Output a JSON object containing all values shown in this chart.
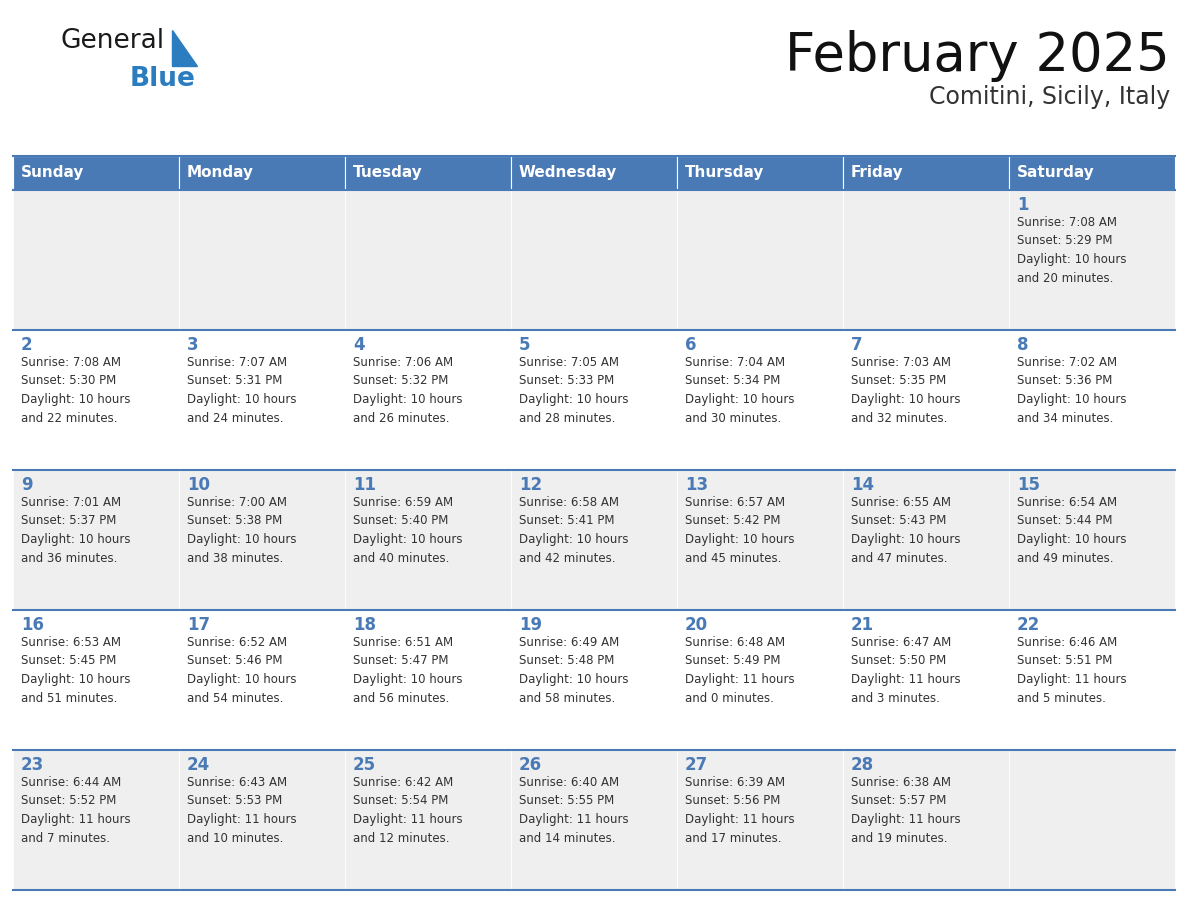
{
  "title": "February 2025",
  "subtitle": "Comitini, Sicily, Italy",
  "header_color": "#4a7ab5",
  "header_text_color": "#ffffff",
  "cell_bg_odd": "#efefef",
  "cell_bg_even": "#ffffff",
  "border_color": "#4a7ab5",
  "day_num_color": "#4a7ab5",
  "text_color": "#333333",
  "days_of_week": [
    "Sunday",
    "Monday",
    "Tuesday",
    "Wednesday",
    "Thursday",
    "Friday",
    "Saturday"
  ],
  "weeks": [
    [
      {
        "day": "",
        "info": ""
      },
      {
        "day": "",
        "info": ""
      },
      {
        "day": "",
        "info": ""
      },
      {
        "day": "",
        "info": ""
      },
      {
        "day": "",
        "info": ""
      },
      {
        "day": "",
        "info": ""
      },
      {
        "day": "1",
        "info": "Sunrise: 7:08 AM\nSunset: 5:29 PM\nDaylight: 10 hours\nand 20 minutes."
      }
    ],
    [
      {
        "day": "2",
        "info": "Sunrise: 7:08 AM\nSunset: 5:30 PM\nDaylight: 10 hours\nand 22 minutes."
      },
      {
        "day": "3",
        "info": "Sunrise: 7:07 AM\nSunset: 5:31 PM\nDaylight: 10 hours\nand 24 minutes."
      },
      {
        "day": "4",
        "info": "Sunrise: 7:06 AM\nSunset: 5:32 PM\nDaylight: 10 hours\nand 26 minutes."
      },
      {
        "day": "5",
        "info": "Sunrise: 7:05 AM\nSunset: 5:33 PM\nDaylight: 10 hours\nand 28 minutes."
      },
      {
        "day": "6",
        "info": "Sunrise: 7:04 AM\nSunset: 5:34 PM\nDaylight: 10 hours\nand 30 minutes."
      },
      {
        "day": "7",
        "info": "Sunrise: 7:03 AM\nSunset: 5:35 PM\nDaylight: 10 hours\nand 32 minutes."
      },
      {
        "day": "8",
        "info": "Sunrise: 7:02 AM\nSunset: 5:36 PM\nDaylight: 10 hours\nand 34 minutes."
      }
    ],
    [
      {
        "day": "9",
        "info": "Sunrise: 7:01 AM\nSunset: 5:37 PM\nDaylight: 10 hours\nand 36 minutes."
      },
      {
        "day": "10",
        "info": "Sunrise: 7:00 AM\nSunset: 5:38 PM\nDaylight: 10 hours\nand 38 minutes."
      },
      {
        "day": "11",
        "info": "Sunrise: 6:59 AM\nSunset: 5:40 PM\nDaylight: 10 hours\nand 40 minutes."
      },
      {
        "day": "12",
        "info": "Sunrise: 6:58 AM\nSunset: 5:41 PM\nDaylight: 10 hours\nand 42 minutes."
      },
      {
        "day": "13",
        "info": "Sunrise: 6:57 AM\nSunset: 5:42 PM\nDaylight: 10 hours\nand 45 minutes."
      },
      {
        "day": "14",
        "info": "Sunrise: 6:55 AM\nSunset: 5:43 PM\nDaylight: 10 hours\nand 47 minutes."
      },
      {
        "day": "15",
        "info": "Sunrise: 6:54 AM\nSunset: 5:44 PM\nDaylight: 10 hours\nand 49 minutes."
      }
    ],
    [
      {
        "day": "16",
        "info": "Sunrise: 6:53 AM\nSunset: 5:45 PM\nDaylight: 10 hours\nand 51 minutes."
      },
      {
        "day": "17",
        "info": "Sunrise: 6:52 AM\nSunset: 5:46 PM\nDaylight: 10 hours\nand 54 minutes."
      },
      {
        "day": "18",
        "info": "Sunrise: 6:51 AM\nSunset: 5:47 PM\nDaylight: 10 hours\nand 56 minutes."
      },
      {
        "day": "19",
        "info": "Sunrise: 6:49 AM\nSunset: 5:48 PM\nDaylight: 10 hours\nand 58 minutes."
      },
      {
        "day": "20",
        "info": "Sunrise: 6:48 AM\nSunset: 5:49 PM\nDaylight: 11 hours\nand 0 minutes."
      },
      {
        "day": "21",
        "info": "Sunrise: 6:47 AM\nSunset: 5:50 PM\nDaylight: 11 hours\nand 3 minutes."
      },
      {
        "day": "22",
        "info": "Sunrise: 6:46 AM\nSunset: 5:51 PM\nDaylight: 11 hours\nand 5 minutes."
      }
    ],
    [
      {
        "day": "23",
        "info": "Sunrise: 6:44 AM\nSunset: 5:52 PM\nDaylight: 11 hours\nand 7 minutes."
      },
      {
        "day": "24",
        "info": "Sunrise: 6:43 AM\nSunset: 5:53 PM\nDaylight: 11 hours\nand 10 minutes."
      },
      {
        "day": "25",
        "info": "Sunrise: 6:42 AM\nSunset: 5:54 PM\nDaylight: 11 hours\nand 12 minutes."
      },
      {
        "day": "26",
        "info": "Sunrise: 6:40 AM\nSunset: 5:55 PM\nDaylight: 11 hours\nand 14 minutes."
      },
      {
        "day": "27",
        "info": "Sunrise: 6:39 AM\nSunset: 5:56 PM\nDaylight: 11 hours\nand 17 minutes."
      },
      {
        "day": "28",
        "info": "Sunrise: 6:38 AM\nSunset: 5:57 PM\nDaylight: 11 hours\nand 19 minutes."
      },
      {
        "day": "",
        "info": ""
      }
    ]
  ],
  "logo_general_color": "#1a1a1a",
  "logo_blue_color": "#2b7dc0",
  "logo_triangle_color": "#2b7dc0",
  "figw": 11.88,
  "figh": 9.18,
  "dpi": 100
}
